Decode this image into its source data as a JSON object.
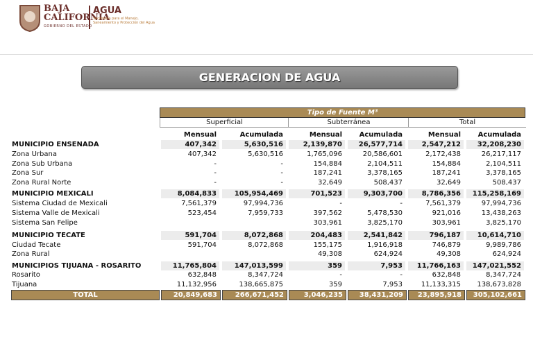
{
  "header": {
    "state": "BAJA CALIFORNIA",
    "government": "GOBIERNO DEL ESTADO",
    "agency": "AGUA",
    "agency_subtitle": "Secretaría para el Manejo, Saneamiento y Protección del Agua"
  },
  "title": "GENERACION DE AGUA",
  "table": {
    "source_header": "Tipo de Fuente M³",
    "groups": [
      "Superficial",
      "Subterránea",
      "Total"
    ],
    "subheaders": [
      "Mensual",
      "Acumulada",
      "Mensual",
      "Acumulada",
      "Mensual",
      "Acumulada"
    ],
    "rows": [
      {
        "kind": "municipio",
        "label": "MUNICIPIO ENSENADA",
        "cells": [
          "407,342",
          "5,630,516",
          "2,139,870",
          "26,577,714",
          "2,547,212",
          "32,208,230"
        ]
      },
      {
        "kind": "zona",
        "label": "Zona Urbana",
        "cells": [
          "407,342",
          "5,630,516",
          "1,765,096",
          "20,586,601",
          "2,172,438",
          "26,217,117"
        ]
      },
      {
        "kind": "zona",
        "label": "Zona Sub Urbana",
        "cells": [
          "-",
          "-",
          "154,884",
          "2,104,511",
          "154,884",
          "2,104,511"
        ]
      },
      {
        "kind": "zona",
        "label": "Zona Sur",
        "cells": [
          "-",
          "-",
          "187,241",
          "3,378,165",
          "187,241",
          "3,378,165"
        ]
      },
      {
        "kind": "zona",
        "label": "Zona Rural Norte",
        "cells": [
          "-",
          "-",
          "32,649",
          "508,437",
          "32,649",
          "508,437"
        ]
      },
      {
        "kind": "municipio",
        "label": "MUNICIPIO MEXICALI",
        "cells": [
          "8,084,833",
          "105,954,469",
          "701,523",
          "9,303,700",
          "8,786,356",
          "115,258,169"
        ]
      },
      {
        "kind": "zona",
        "label": "Sistema Ciudad de Mexicali",
        "cells": [
          "7,561,379",
          "97,994,736",
          "-",
          "-",
          "7,561,379",
          "97,994,736"
        ]
      },
      {
        "kind": "zona",
        "label": "Sistema Valle de Mexicali",
        "cells": [
          "523,454",
          "7,959,733",
          "397,562",
          "5,478,530",
          "921,016",
          "13,438,263"
        ]
      },
      {
        "kind": "zona",
        "label": "Sistema San Felipe",
        "cells": [
          null,
          null,
          "303,961",
          "3,825,170",
          "303,961",
          "3,825,170"
        ]
      },
      {
        "kind": "municipio",
        "label": "MUNICIPIO TECATE",
        "cells": [
          "591,704",
          "8,072,868",
          "204,483",
          "2,541,842",
          "796,187",
          "10,614,710"
        ]
      },
      {
        "kind": "zona",
        "label": "Ciudad Tecate",
        "cells": [
          "591,704",
          "8,072,868",
          "155,175",
          "1,916,918",
          "746,879",
          "9,989,786"
        ]
      },
      {
        "kind": "zona",
        "label": "Zona Rural",
        "cells": [
          null,
          null,
          "49,308",
          "624,924",
          "49,308",
          "624,924"
        ]
      },
      {
        "kind": "municipio",
        "label": "MUNICIPIOS TIJUANA - ROSARITO",
        "cells": [
          "11,765,804",
          "147,013,599",
          "359",
          "7,953",
          "11,766,163",
          "147,021,552"
        ]
      },
      {
        "kind": "zona",
        "label": "Rosarito",
        "cells": [
          "632,848",
          "8,347,724",
          "-",
          "-",
          "632,848",
          "8,347,724"
        ]
      },
      {
        "kind": "zona",
        "label": "Tijuana",
        "cells": [
          "11,132,956",
          "138,665,875",
          "359",
          "7,953",
          "11,133,315",
          "138,673,828"
        ]
      },
      {
        "kind": "total",
        "label": "TOTAL",
        "cells": [
          "20,849,683",
          "266,671,452",
          "3,046,235",
          "38,431,209",
          "23,895,918",
          "305,102,661"
        ]
      }
    ]
  }
}
